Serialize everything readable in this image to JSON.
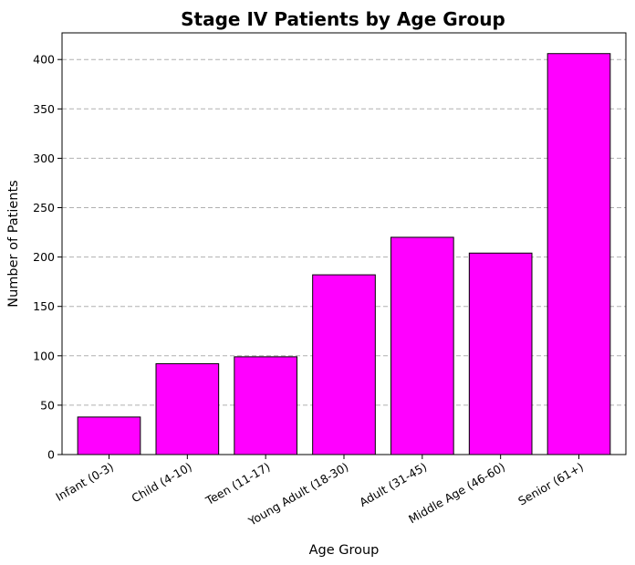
{
  "chart_data": {
    "type": "bar",
    "title": "Stage IV Patients by Age Group",
    "xlabel": "Age Group",
    "ylabel": "Number of Patients",
    "categories": [
      "Infant (0-3)",
      "Child (4-10)",
      "Teen (11-17)",
      "Young Adult (18-30)",
      "Adult (31-45)",
      "Middle Age (46-60)",
      "Senior (61+)"
    ],
    "values": [
      38,
      92,
      99,
      182,
      220,
      204,
      406
    ],
    "ylim": [
      0,
      427
    ],
    "yticks": [
      0,
      50,
      100,
      150,
      200,
      250,
      300,
      350,
      400
    ],
    "grid": "y-dashed",
    "bar_color": "#ff00ff",
    "edge_color": "#000000"
  }
}
